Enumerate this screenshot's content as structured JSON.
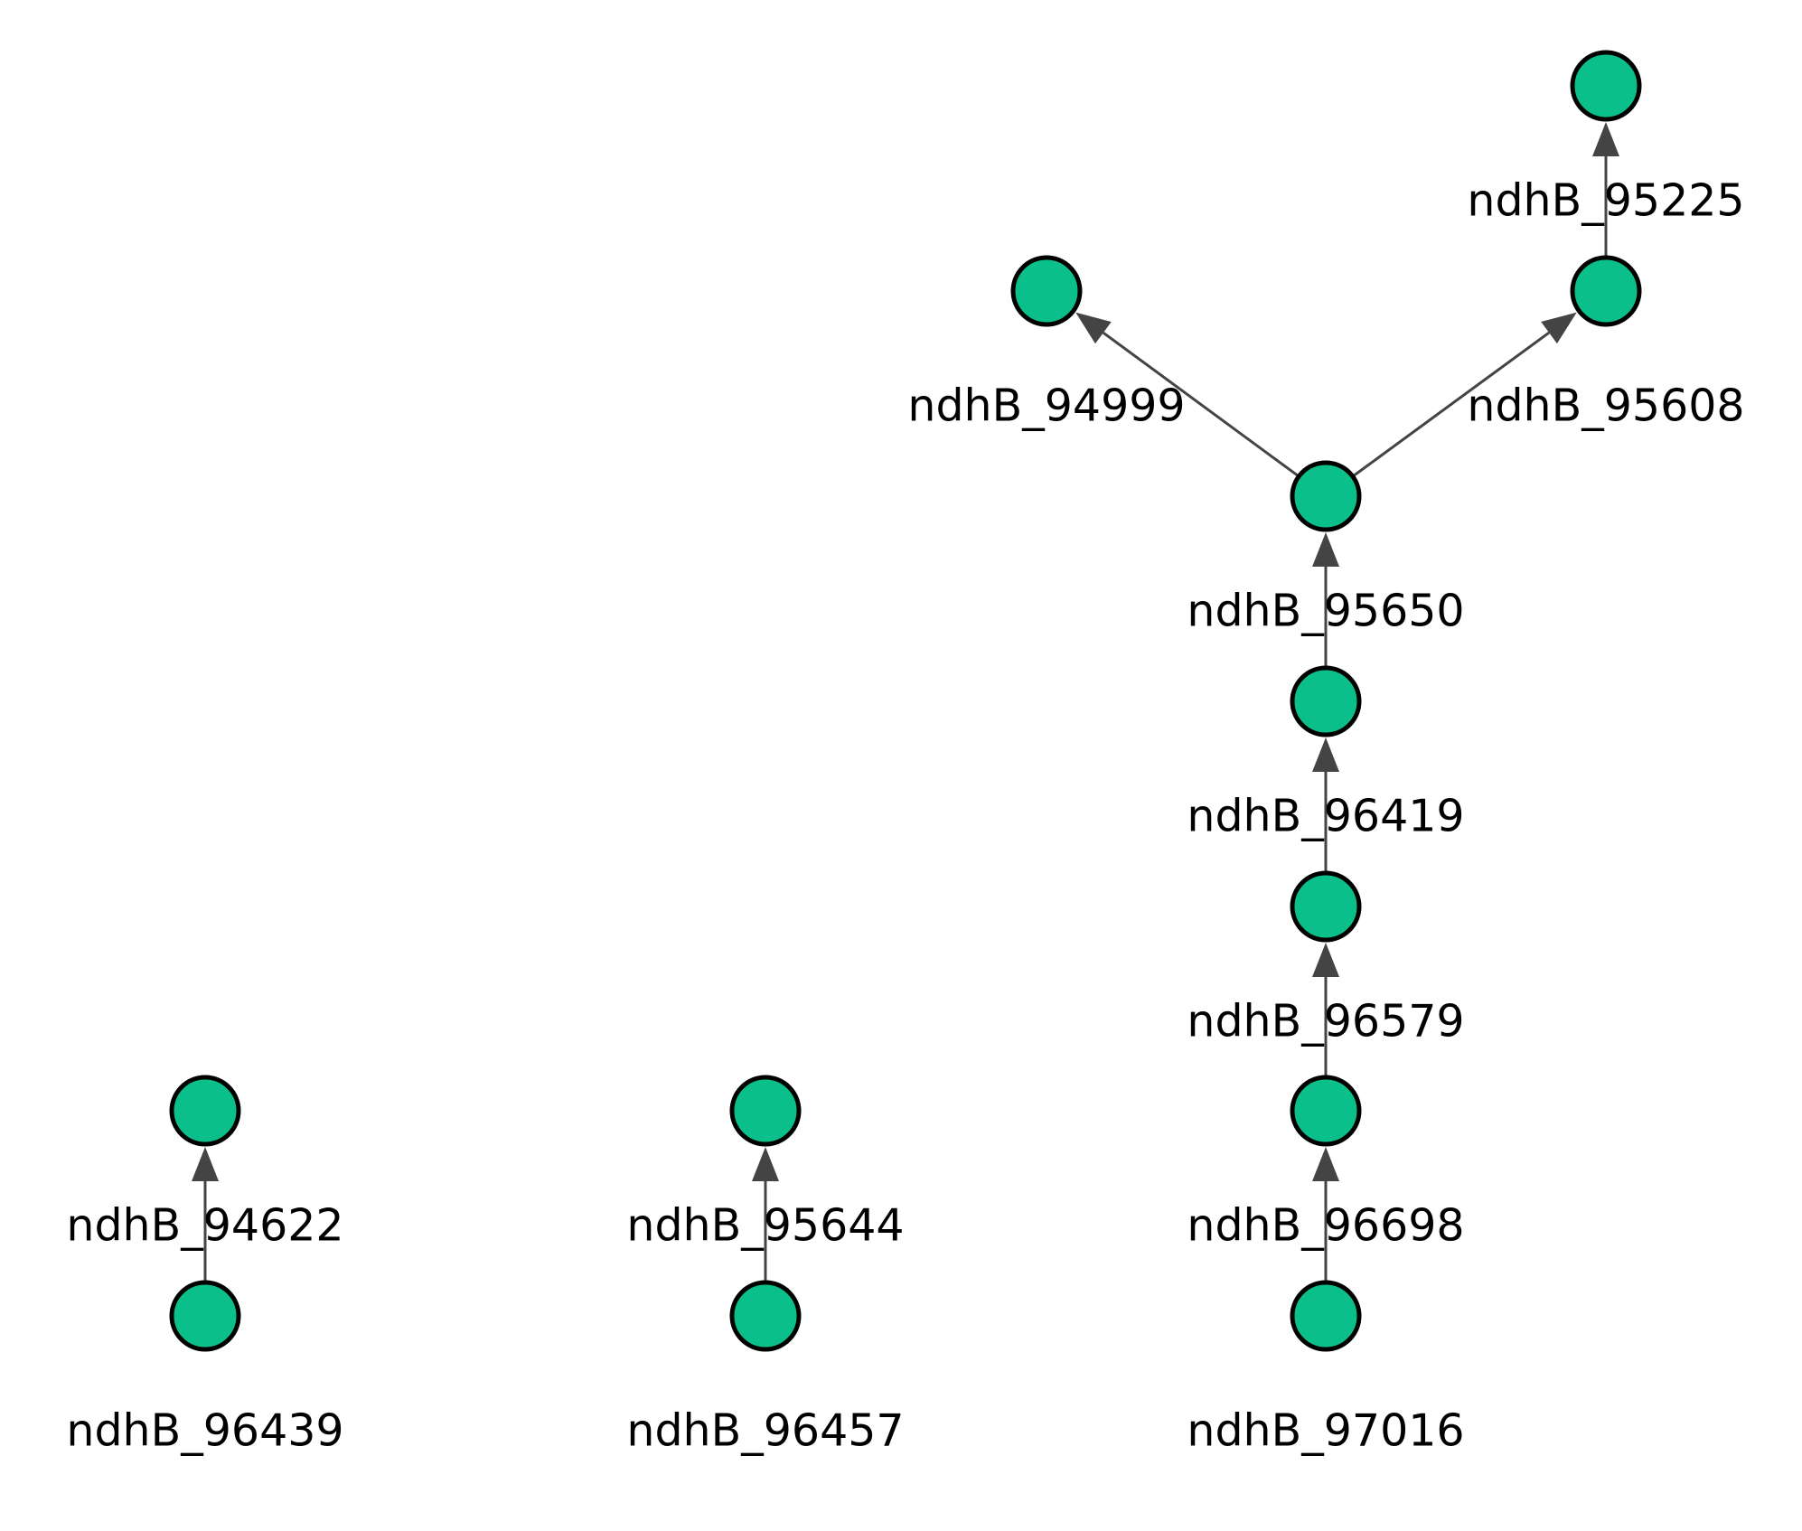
{
  "colors": {
    "node_fill": "#0bbf8a",
    "node_stroke": "#000000",
    "edge": "#444444",
    "label": "#000000",
    "background": "#ffffff"
  },
  "nodes": [
    {
      "id": "n_95225_top",
      "label": ""
    },
    {
      "id": "n_95225",
      "label": "ndhB_95225"
    },
    {
      "id": "n_94999",
      "label": ""
    },
    {
      "id": "n_95608",
      "label": "ndhB_95608"
    },
    {
      "id": "n_95650",
      "label": "ndhB_94999"
    },
    {
      "id": "n_96419",
      "label": "ndhB_95650"
    },
    {
      "id": "n_96579",
      "label": "ndhB_96419"
    },
    {
      "id": "n_96698",
      "label": "ndhB_96579"
    },
    {
      "id": "n_97016",
      "label": "ndhB_96698"
    },
    {
      "id": "n_97016_bottom",
      "label": "ndhB_97016"
    },
    {
      "id": "n_94622_top",
      "label": ""
    },
    {
      "id": "n_96439",
      "label": "ndhB_94622"
    },
    {
      "id": "n_96439_label",
      "label": "ndhB_96439"
    },
    {
      "id": "n_95644_top",
      "label": ""
    },
    {
      "id": "n_96457",
      "label": "ndhB_95644"
    },
    {
      "id": "n_96457_label",
      "label": "ndhB_96457"
    }
  ],
  "labels": [
    "ndhB_95225",
    "ndhB_94999",
    "ndhB_95608",
    "ndhB_95650",
    "ndhB_96419",
    "ndhB_96579",
    "ndhB_94622",
    "ndhB_95644",
    "ndhB_96698",
    "ndhB_96439",
    "ndhB_96457",
    "ndhB_97016"
  ],
  "edges": [
    {
      "from": "ndhB_95608",
      "to": "ndhB_95225"
    },
    {
      "from": "ndhB_95650",
      "to": "ndhB_94999"
    },
    {
      "from": "ndhB_95650",
      "to": "ndhB_95608"
    },
    {
      "from": "ndhB_96419",
      "to": "ndhB_95650"
    },
    {
      "from": "ndhB_96579",
      "to": "ndhB_96419"
    },
    {
      "from": "ndhB_96698",
      "to": "ndhB_96579"
    },
    {
      "from": "ndhB_97016",
      "to": "ndhB_96698"
    },
    {
      "from": "ndhB_96439",
      "to": "ndhB_94622"
    },
    {
      "from": "ndhB_96457",
      "to": "ndhB_95644"
    }
  ]
}
